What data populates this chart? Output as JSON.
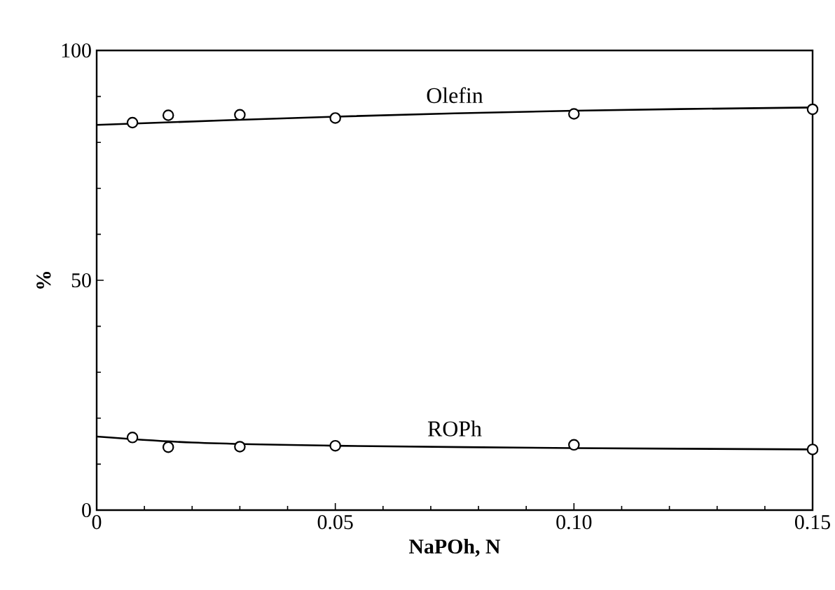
{
  "chart_data": {
    "type": "scatter",
    "xlabel": "NaPOh, N",
    "ylabel": "%",
    "xlim": [
      0,
      0.15
    ],
    "ylim": [
      0,
      100
    ],
    "xticks": [
      0,
      0.05,
      {
        "value": 0.1,
        "label": "0.10"
      },
      0.15
    ],
    "yticks": [
      0,
      50,
      100
    ],
    "marker": "circle",
    "grid": false,
    "series": [
      {
        "color": "#000000",
        "x": [
          0.0075,
          0.015,
          0.03,
          0.05,
          0.1,
          0.15
        ],
        "values": [
          84.3,
          85.9,
          86.0,
          85.3,
          86.2,
          87.2
        ]
      },
      {
        "color": "#000000",
        "x": [
          0.0075,
          0.015,
          0.03,
          0.05,
          0.1,
          0.15
        ],
        "values": [
          15.8,
          13.7,
          13.8,
          14.0,
          14.2,
          13.2
        ]
      },
      {
        "type": "line",
        "name": "Olefin",
        "marker": "none",
        "color": "#000000",
        "x": [
          0,
          0.05,
          0.1,
          0.15
        ],
        "values": [
          83.8,
          85.6,
          86.9,
          87.6
        ]
      },
      {
        "type": "line",
        "name": "ROPh",
        "marker": "none",
        "color": "#000000",
        "x": [
          0,
          0.02,
          0.05,
          0.1,
          0.15
        ],
        "values": [
          16.0,
          14.7,
          14.0,
          13.5,
          13.2
        ]
      }
    ]
  }
}
